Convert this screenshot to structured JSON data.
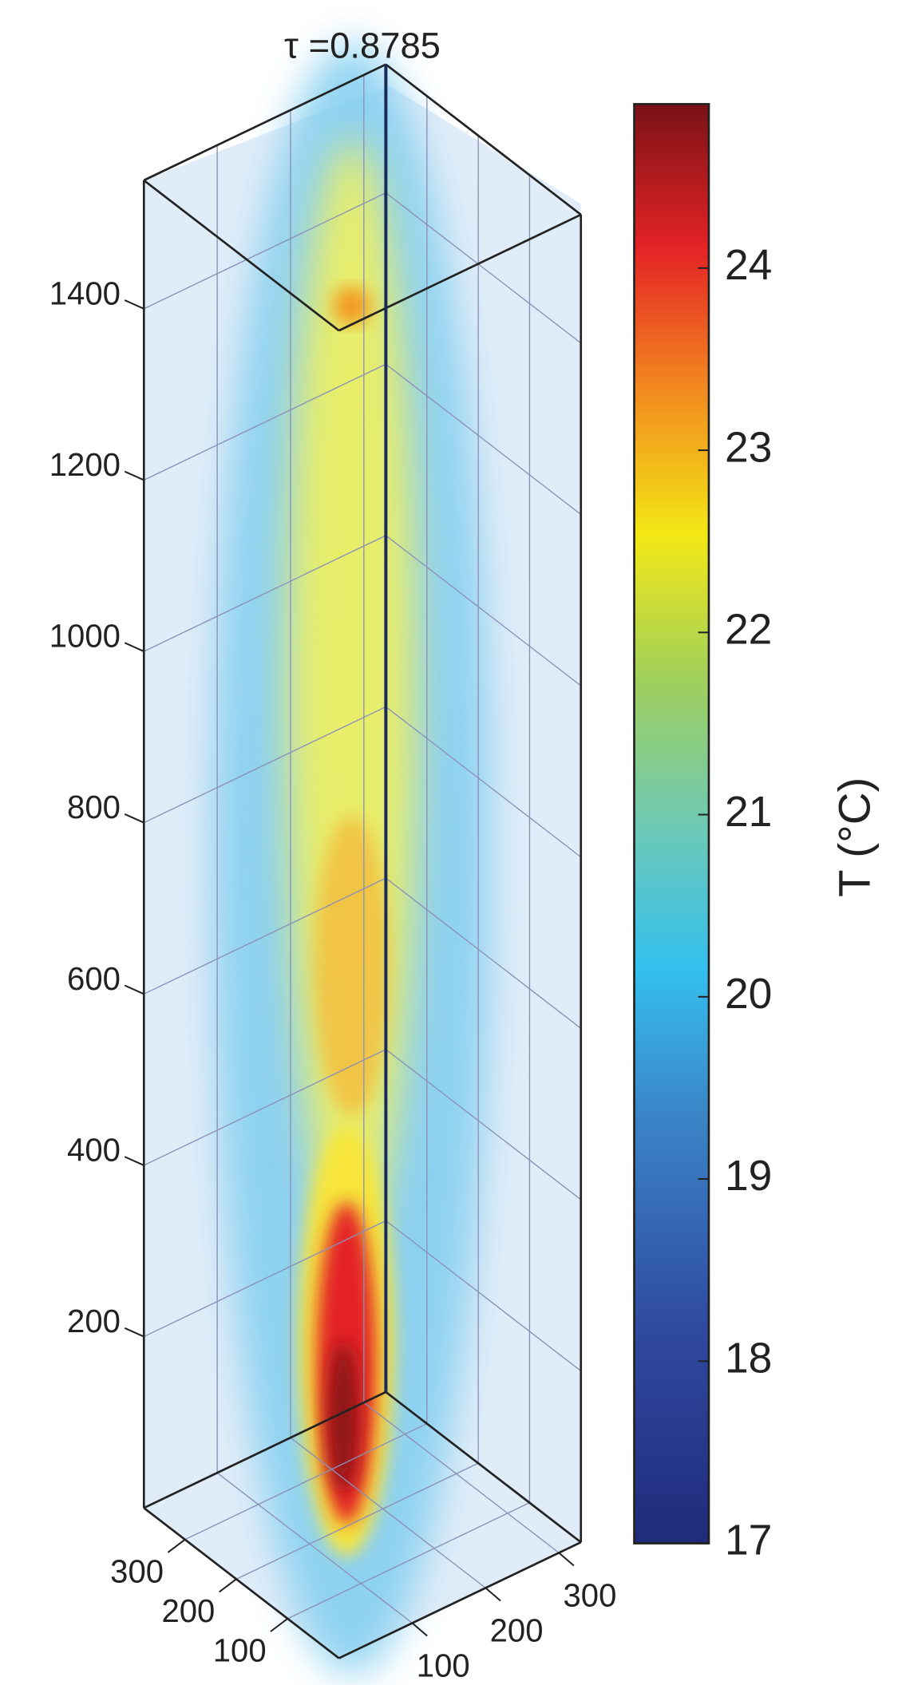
{
  "chart_data": {
    "type": "volume",
    "title": "τ =0.8785",
    "xlim": [
      0,
      380
    ],
    "xticks": [
      100,
      200,
      300
    ],
    "ylim": [
      0,
      330
    ],
    "yticks": [
      100,
      200,
      300
    ],
    "zlim": [
      0,
      1550
    ],
    "zticks": [
      200,
      400,
      600,
      800,
      1000,
      1200,
      1400
    ],
    "colorbar": {
      "label": "T (°C)",
      "lim": [
        17,
        24.9
      ],
      "ticks": [
        17,
        18,
        19,
        20,
        21,
        22,
        23,
        24
      ]
    },
    "grid": true
  }
}
